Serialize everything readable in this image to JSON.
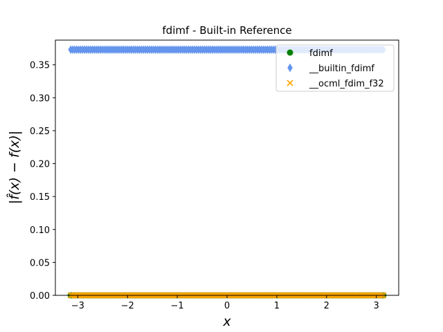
{
  "chart_data": {
    "type": "scatter",
    "title": "fdimf - Built-in Reference",
    "xlabel": "x",
    "ylabel": "|f̂(x) − f(x)|",
    "xlim": [
      -3.45,
      3.45
    ],
    "ylim": [
      0.0,
      0.3875
    ],
    "xticks": [
      -3,
      -2,
      -1,
      0,
      1,
      2,
      3
    ],
    "xtick_labels": [
      "−3",
      "−2",
      "−1",
      "0",
      "1",
      "2",
      "3"
    ],
    "yticks": [
      0.0,
      0.05,
      0.1,
      0.15,
      0.2,
      0.25,
      0.3,
      0.35
    ],
    "ytick_labels": [
      "0.00",
      "0.05",
      "0.10",
      "0.15",
      "0.20",
      "0.25",
      "0.30",
      "0.35"
    ],
    "grid": false,
    "legend_position": "top-right",
    "x_range": [
      -3.14159,
      3.14159
    ],
    "point_count": 160,
    "series": [
      {
        "name": "fdimf",
        "marker": "circle",
        "color": "#008000",
        "y_value": 0.0
      },
      {
        "name": "__builtin_fdimf",
        "marker": "thin-diamond",
        "color": "#6495ed",
        "y_value": 0.373
      },
      {
        "name": "__ocml_fdim_f32",
        "marker": "x",
        "color": "#ffa500",
        "y_value": 0.0
      }
    ]
  }
}
